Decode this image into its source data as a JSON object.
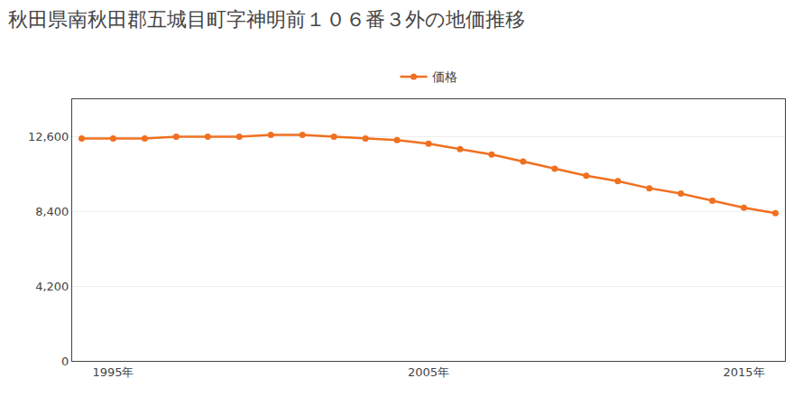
{
  "chart_data": {
    "type": "line",
    "title": "秋田県南秋田郡五城目町字神明前１０６番３外の地価推移",
    "x": [
      1994,
      1995,
      1996,
      1997,
      1998,
      1999,
      2000,
      2001,
      2002,
      2003,
      2004,
      2005,
      2006,
      2007,
      2008,
      2009,
      2010,
      2011,
      2012,
      2013,
      2014,
      2015,
      2016
    ],
    "series": [
      {
        "name": "価格",
        "color": "#f07020",
        "marker": "circle",
        "values": [
          12500,
          12500,
          12500,
          12600,
          12600,
          12600,
          12700,
          12700,
          12600,
          12500,
          12400,
          12200,
          11900,
          11600,
          11200,
          10800,
          10400,
          10100,
          9700,
          9400,
          9000,
          8600,
          8300
        ]
      }
    ],
    "xlim": [
      1993.7,
      2016.3
    ],
    "xticks": [
      {
        "value": 1995,
        "label": "1995年"
      },
      {
        "value": 2005,
        "label": "2005年"
      },
      {
        "value": 2015,
        "label": "2015年"
      }
    ],
    "ylim": [
      0,
      14700
    ],
    "yticks": [
      0,
      {
        "value": 4200,
        "label": "4,200"
      },
      {
        "value": 8400,
        "label": "8,400"
      },
      {
        "value": 12600,
        "label": "12,600"
      }
    ],
    "grid": "y",
    "legend": "top"
  }
}
